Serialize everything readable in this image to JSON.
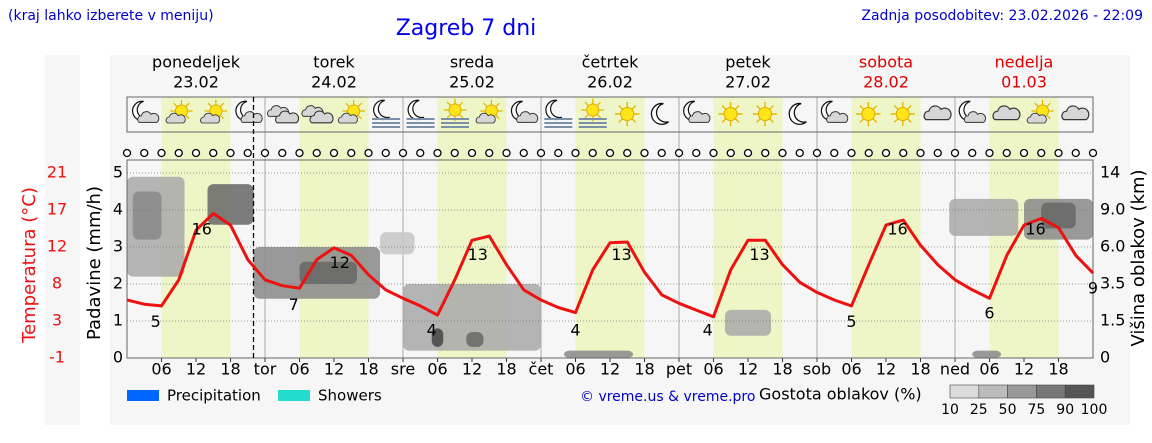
{
  "header": {
    "hint": "(kraj lahko izberete v meniju)",
    "updated": "Zadnja posodobitev: 23.02.2026 - 22:09"
  },
  "chart_data": {
    "type": "line",
    "title": "Zagreb 7 dni",
    "days": [
      {
        "name": "ponedeljek",
        "date": "23.02",
        "color": "#000000"
      },
      {
        "name": "torek",
        "date": "24.02",
        "color": "#000000"
      },
      {
        "name": "sreda",
        "date": "25.02",
        "color": "#000000"
      },
      {
        "name": "četrtek",
        "date": "26.02",
        "color": "#000000"
      },
      {
        "name": "petek",
        "date": "27.02",
        "color": "#000000"
      },
      {
        "name": "sobota",
        "date": "28.02",
        "color": "#dd0000"
      },
      {
        "name": "nedelja",
        "date": "01.03",
        "color": "#dd0000"
      }
    ],
    "xlim": [
      0,
      168
    ],
    "xticks": [
      {
        "value": 6,
        "label": "06"
      },
      12,
      18,
      {
        "value": 24,
        "label": "tor"
      },
      {
        "value": 30,
        "label": "06"
      },
      {
        "value": 36,
        "label": "12"
      },
      {
        "value": 42,
        "label": "18"
      },
      {
        "value": 48,
        "label": "sre"
      },
      {
        "value": 54,
        "label": "06"
      },
      {
        "value": 60,
        "label": "12"
      },
      {
        "value": 66,
        "label": "18"
      },
      {
        "value": 72,
        "label": "čet"
      },
      {
        "value": 78,
        "label": "06"
      },
      {
        "value": 84,
        "label": "12"
      },
      {
        "value": 90,
        "label": "18"
      },
      {
        "value": 96,
        "label": "pet"
      },
      {
        "value": 102,
        "label": "06"
      },
      {
        "value": 108,
        "label": "12"
      },
      {
        "value": 114,
        "label": "18"
      },
      {
        "value": 120,
        "label": "sob"
      },
      {
        "value": 126,
        "label": "06"
      },
      {
        "value": 132,
        "label": "12"
      },
      {
        "value": 138,
        "label": "18"
      },
      {
        "value": 144,
        "label": "ned"
      },
      {
        "value": 150,
        "label": "06"
      },
      {
        "value": 156,
        "label": "12"
      },
      {
        "value": 162,
        "label": "18"
      }
    ],
    "now": 22,
    "ylabel": "Padavine (mm/h)",
    "ylim": [
      0,
      5
    ],
    "yticks": [
      0,
      1,
      2,
      3,
      4,
      5
    ],
    "tlabel": "Temperatura (°C)",
    "tlim": [
      -1,
      21
    ],
    "tticks": [
      -1,
      {
        "value": 3.4,
        "label": "3"
      },
      {
        "value": 7.8,
        "label": "8"
      },
      {
        "value": 12.2,
        "label": "12"
      },
      {
        "value": 16.6,
        "label": "17"
      },
      21
    ],
    "y2label": "Višina oblakov (km)",
    "y2ticks": [
      0,
      1.5,
      3.5,
      {
        "value": 6,
        "label": "6.0"
      },
      {
        "value": 9,
        "label": "9.0"
      },
      14
    ],
    "grid": true,
    "temperature": {
      "color": "#ee1111",
      "x": [
        0,
        3,
        6,
        9,
        12,
        15,
        18,
        21,
        24,
        27,
        30,
        33,
        36,
        39,
        42,
        45,
        48,
        51,
        54,
        57,
        60,
        63,
        66,
        69,
        72,
        75,
        78,
        81,
        84,
        87,
        90,
        93,
        96,
        99,
        102,
        105,
        108,
        111,
        114,
        117,
        120,
        123,
        126,
        129,
        132,
        135,
        138,
        141,
        144,
        147,
        150,
        153,
        156,
        159,
        162,
        165,
        168
      ],
      "values": [
        5.9,
        5.4,
        5.2,
        8.3,
        14.2,
        16.2,
        14.8,
        10.7,
        8.3,
        7.6,
        7.3,
        10.7,
        12.1,
        11.2,
        8.9,
        7.1,
        6.1,
        5.2,
        4.1,
        8.3,
        13.0,
        13.5,
        10.1,
        7.1,
        5.9,
        5.0,
        4.4,
        9.5,
        12.7,
        12.8,
        9.2,
        6.5,
        5.5,
        4.7,
        3.9,
        9.5,
        13.0,
        13.0,
        10.1,
        8.0,
        6.8,
        5.9,
        5.2,
        10.1,
        14.8,
        15.4,
        12.4,
        10.1,
        8.3,
        7.1,
        6.1,
        11.2,
        14.8,
        15.6,
        14.5,
        11.2,
        9.1
      ]
    },
    "temperature_labels": [
      {
        "x": 13,
        "value": 16
      },
      {
        "x": 5,
        "value": 5
      },
      {
        "x": 29,
        "value": 7
      },
      {
        "x": 37,
        "value": 12
      },
      {
        "x": 53,
        "value": 4
      },
      {
        "x": 61,
        "value": 13
      },
      {
        "x": 78,
        "value": 4
      },
      {
        "x": 86,
        "value": 13
      },
      {
        "x": 101,
        "value": 4
      },
      {
        "x": 110,
        "value": 13
      },
      {
        "x": 126,
        "value": 5
      },
      {
        "x": 134,
        "value": 16
      },
      {
        "x": 150,
        "value": 6
      },
      {
        "x": 158,
        "value": 16
      },
      {
        "x": 168,
        "value": 9
      }
    ],
    "cloud_cover": [
      {
        "x": [
          0,
          10
        ],
        "y": [
          2.2,
          4.9
        ],
        "density": 50
      },
      {
        "x": [
          1,
          6
        ],
        "y": [
          3.2,
          4.5
        ],
        "density": 75
      },
      {
        "x": [
          14,
          22
        ],
        "y": [
          3.6,
          4.7
        ],
        "density": 90
      },
      {
        "x": [
          22,
          44
        ],
        "y": [
          1.6,
          3.0
        ],
        "density": 75
      },
      {
        "x": [
          30,
          40
        ],
        "y": [
          2.0,
          2.6
        ],
        "density": 90
      },
      {
        "x": [
          44,
          50
        ],
        "y": [
          2.8,
          3.4
        ],
        "density": 25
      },
      {
        "x": [
          48,
          72
        ],
        "y": [
          0.2,
          2.0
        ],
        "density": 50
      },
      {
        "x": [
          53,
          55
        ],
        "y": [
          0.3,
          0.8
        ],
        "density": 100
      },
      {
        "x": [
          59,
          62
        ],
        "y": [
          0.3,
          0.7
        ],
        "density": 90
      },
      {
        "x": [
          76,
          88
        ],
        "y": [
          0,
          0.2
        ],
        "density": 75
      },
      {
        "x": [
          104,
          112
        ],
        "y": [
          0.6,
          1.3
        ],
        "density": 50
      },
      {
        "x": [
          143,
          155
        ],
        "y": [
          3.3,
          4.3
        ],
        "density": 50
      },
      {
        "x": [
          156,
          168
        ],
        "y": [
          3.2,
          4.3
        ],
        "density": 75
      },
      {
        "x": [
          159,
          165
        ],
        "y": [
          3.5,
          4.2
        ],
        "density": 90
      },
      {
        "x": [
          147,
          152
        ],
        "y": [
          0,
          0.2
        ],
        "density": 75
      }
    ],
    "legend": [
      {
        "name": "Precipitation",
        "color": "#0066ff"
      },
      {
        "name": "Showers",
        "color": "#22ddcc"
      }
    ],
    "credit": "© vreme.us & vreme.pro",
    "density_title": "Gostota oblakov (%)",
    "density_legend": [
      10,
      25,
      50,
      75,
      90,
      100
    ]
  }
}
